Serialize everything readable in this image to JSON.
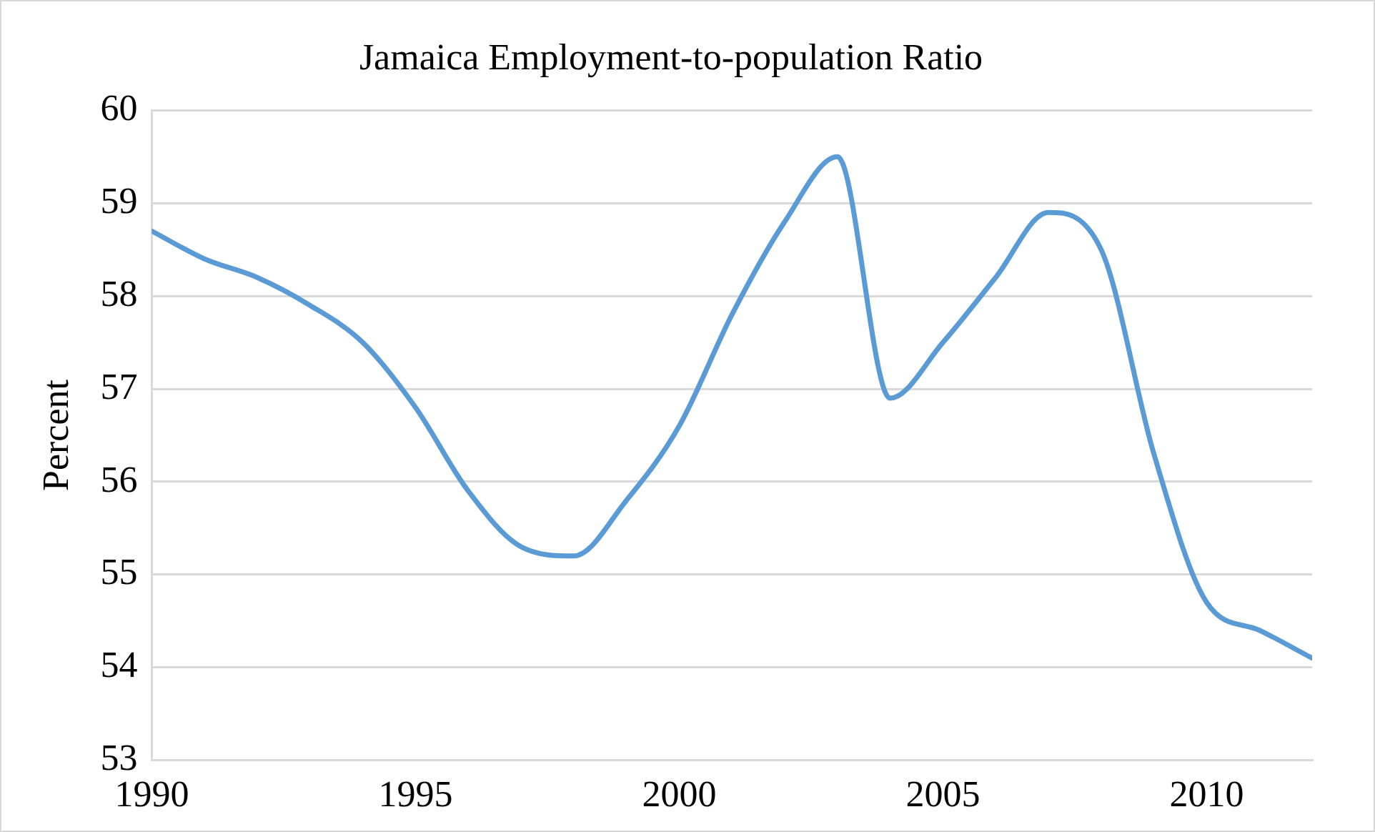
{
  "chart_data": {
    "type": "line",
    "title": "Jamaica Employment-to-population Ratio",
    "ylabel": "Percent",
    "x": [
      1990,
      1991,
      1992,
      1993,
      1994,
      1995,
      1996,
      1997,
      1998,
      1999,
      2000,
      2001,
      2002,
      2003,
      2004,
      2005,
      2006,
      2007,
      2008,
      2009,
      2010,
      2011,
      2012
    ],
    "series": [
      {
        "color": "#5b9bd5",
        "values": [
          58.7,
          58.4,
          58.2,
          57.9,
          57.5,
          56.8,
          55.9,
          55.3,
          55.2,
          55.8,
          56.6,
          57.8,
          58.8,
          59.5,
          56.9,
          57.5,
          58.2,
          58.9,
          58.5,
          56.3,
          54.7,
          54.4,
          54.1
        ]
      }
    ],
    "xlim": [
      1990,
      2012
    ],
    "xticks": [
      1990,
      1995,
      2000,
      2005,
      2010
    ],
    "ylim": [
      53,
      60
    ],
    "yticks": [
      53,
      54,
      55,
      56,
      57,
      58,
      59,
      60
    ],
    "grid": "y",
    "legend": false,
    "marker": "none",
    "line_style": "solid"
  }
}
